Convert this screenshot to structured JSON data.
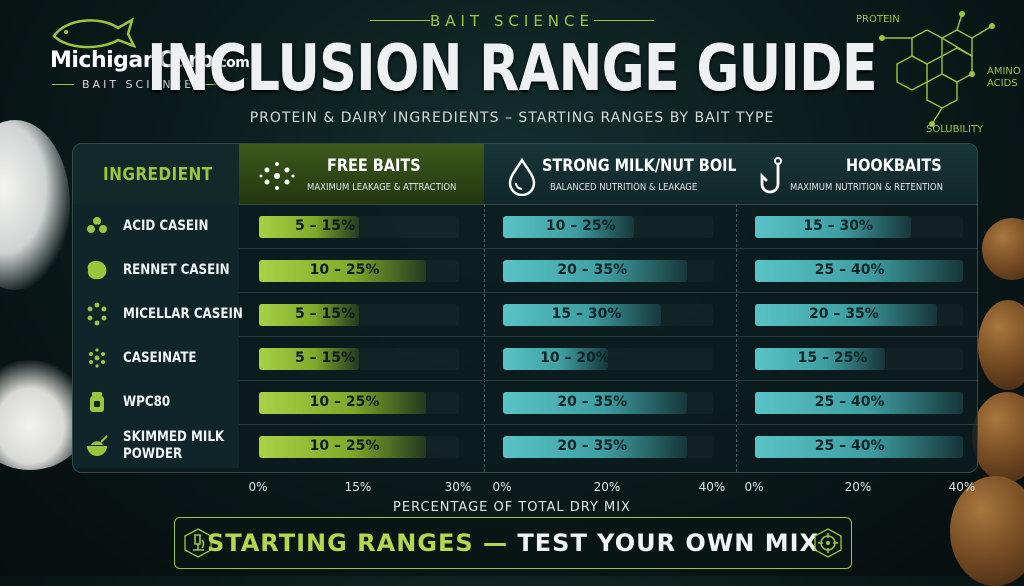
{
  "brand": {
    "name": "MichiganCarp",
    "domain": ".com",
    "tagline": "BAIT SCIENCE"
  },
  "header": {
    "kicker": "BAIT SCIENCE",
    "title": "INCLUSION RANGE GUIDE",
    "subtitle": "PROTEIN & DAIRY INGREDIENTS – STARTING RANGES BY BAIT TYPE"
  },
  "molecule": {
    "labels": [
      "PROTEIN",
      "AMINO",
      "ACIDS",
      "SOLUBILITY"
    ]
  },
  "colors": {
    "accent_green": "#9bc53d",
    "free_bar": "#a8d245",
    "milk_bar": "#59c3c6",
    "hook_bar": "#59c3c6"
  },
  "chart_data": {
    "type": "bar",
    "title": "INCLUSION RANGE GUIDE",
    "subtitle": "PROTEIN & DAIRY INGREDIENTS – STARTING RANGES BY BAIT TYPE",
    "xlabel": "PERCENTAGE OF TOTAL DRY MIX",
    "row_header": "INGREDIENT",
    "categories": [
      "ACID CASEIN",
      "RENNET CASEIN",
      "MICELLAR CASEIN",
      "CASEINATE",
      "WPC80",
      "SKIMMED MILK POWDER"
    ],
    "category_icons": [
      "acid-casein-icon",
      "rennet-casein-icon",
      "micellar-casein-icon",
      "caseinate-icon",
      "wpc80-jar-icon",
      "milk-powder-bowl-icon"
    ],
    "series": [
      {
        "name": "FREE BAITS",
        "description": "MAXIMUM LEAKAGE & ATTRACTION",
        "icon": "particles-icon",
        "xlim": [
          0,
          30
        ],
        "ticks": [
          "0%",
          "15%",
          "30%"
        ],
        "labels": [
          "5 – 15%",
          "10 – 25%",
          "5 – 15%",
          "5 – 15%",
          "10 – 25%",
          "10 – 25%"
        ],
        "ranges": [
          [
            5,
            15
          ],
          [
            10,
            25
          ],
          [
            5,
            15
          ],
          [
            5,
            15
          ],
          [
            10,
            25
          ],
          [
            10,
            25
          ]
        ]
      },
      {
        "name": "STRONG MILK/NUT BOILIES",
        "description": "BALANCED NUTRITION & LEAKAGE",
        "icon": "droplet-icon",
        "xlim": [
          0,
          40
        ],
        "ticks": [
          "0%",
          "20%",
          "40%"
        ],
        "labels": [
          "10 – 25%",
          "20 – 35%",
          "15 – 30%",
          "10 – 20%",
          "20 – 35%",
          "20 – 35%"
        ],
        "ranges": [
          [
            10,
            25
          ],
          [
            20,
            35
          ],
          [
            15,
            30
          ],
          [
            10,
            20
          ],
          [
            20,
            35
          ],
          [
            20,
            35
          ]
        ]
      },
      {
        "name": "HOOKBAITS",
        "description": "MAXIMUM NUTRITION & RETENTION",
        "icon": "hook-icon",
        "xlim": [
          0,
          40
        ],
        "ticks": [
          "0%",
          "20%",
          "40%"
        ],
        "labels": [
          "15 – 30%",
          "25 – 40%",
          "20 – 35%",
          "15 – 25%",
          "25 – 40%",
          "25 – 40%"
        ],
        "ranges": [
          [
            15,
            30
          ],
          [
            25,
            40
          ],
          [
            20,
            35
          ],
          [
            15,
            25
          ],
          [
            25,
            40
          ],
          [
            25,
            40
          ]
        ]
      }
    ]
  },
  "footer": {
    "part1": "STARTING RANGES",
    "dash": " — ",
    "part2": "TEST YOUR OWN MIX",
    "left_icon": "microscope-icon",
    "right_icon": "target-icon"
  }
}
